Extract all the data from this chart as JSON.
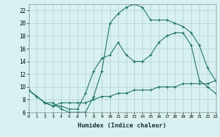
{
  "xlabel": "Humidex (Indice chaleur)",
  "bg_color": "#d8f0f0",
  "line_color": "#1a7060",
  "grid_color": "#b8d8d8",
  "line1_x": [
    0,
    1,
    2,
    3,
    4,
    5,
    6,
    7,
    8,
    9,
    10,
    11,
    12,
    13,
    14,
    15,
    16,
    17,
    18,
    19,
    20,
    21,
    22,
    23
  ],
  "line1_y": [
    9.5,
    8.5,
    7.5,
    7.5,
    6.5,
    6.0,
    6.0,
    6.0,
    8.5,
    12.5,
    20.0,
    21.5,
    22.5,
    23.0,
    22.5,
    20.5,
    20.5,
    20.5,
    20.0,
    19.5,
    18.5,
    16.5,
    13.0,
    11.0
  ],
  "line2_x": [
    0,
    1,
    2,
    3,
    4,
    5,
    6,
    7,
    8,
    9,
    10,
    11,
    12,
    13,
    14,
    15,
    16,
    17,
    18,
    19,
    20,
    21,
    22,
    23
  ],
  "line2_y": [
    9.5,
    8.5,
    7.5,
    7.0,
    7.0,
    6.5,
    6.5,
    9.0,
    12.5,
    14.5,
    15.0,
    17.0,
    15.0,
    14.0,
    14.0,
    15.0,
    17.0,
    18.0,
    18.5,
    18.5,
    16.5,
    11.0,
    10.0,
    9.0
  ],
  "line3_x": [
    0,
    1,
    2,
    3,
    4,
    5,
    6,
    7,
    8,
    9,
    10,
    11,
    12,
    13,
    14,
    15,
    16,
    17,
    18,
    19,
    20,
    21,
    22,
    23
  ],
  "line3_y": [
    9.5,
    8.5,
    7.5,
    7.0,
    7.5,
    7.5,
    7.5,
    7.5,
    8.0,
    8.5,
    8.5,
    9.0,
    9.0,
    9.5,
    9.5,
    9.5,
    10.0,
    10.0,
    10.0,
    10.5,
    10.5,
    10.5,
    10.5,
    11.0
  ],
  "ylim": [
    6,
    23
  ],
  "xlim": [
    0,
    23
  ],
  "yticks": [
    6,
    8,
    10,
    12,
    14,
    16,
    18,
    20,
    22
  ],
  "xticks": [
    0,
    1,
    2,
    3,
    4,
    5,
    6,
    7,
    8,
    9,
    10,
    11,
    12,
    13,
    14,
    15,
    16,
    17,
    18,
    19,
    20,
    21,
    22,
    23
  ],
  "xlabel_fontsize": 6.5,
  "ytick_fontsize": 5.5,
  "xtick_fontsize": 4.5
}
